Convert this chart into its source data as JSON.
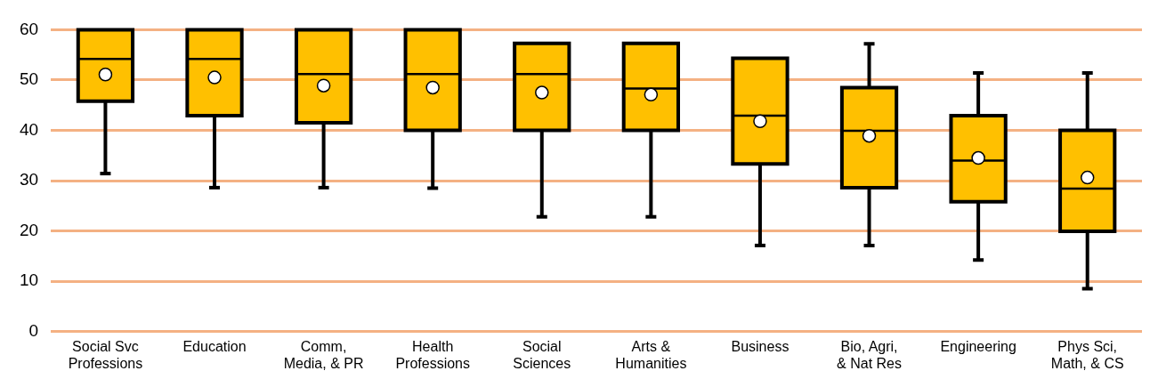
{
  "chart_data": {
    "type": "box",
    "categories": [
      "Social Svc Professions",
      "Education",
      "Comm, Media, & PR",
      "Health Professions",
      "Social Sciences",
      "Arts & Humanities",
      "Business",
      "Bio, Agri, & Nat Res",
      "Engineering",
      "Phys Sci, Math, & CS"
    ],
    "color": "#ffc000",
    "boxes": [
      {
        "low": 31.4,
        "q1": 45.8,
        "median": 54.2,
        "q3": 60,
        "high": 60,
        "mean": 51.1
      },
      {
        "low": 28.6,
        "q1": 42.9,
        "median": 54.2,
        "q3": 60,
        "high": 60,
        "mean": 50.5
      },
      {
        "low": 28.6,
        "q1": 41.5,
        "median": 51.2,
        "q3": 60,
        "high": 60,
        "mean": 48.9
      },
      {
        "low": 28.5,
        "q1": 40,
        "median": 51.2,
        "q3": 60,
        "high": 60,
        "mean": 48.5
      },
      {
        "low": 22.8,
        "q1": 40,
        "median": 51.2,
        "q3": 57.3,
        "high": 57.3,
        "mean": 47.5
      },
      {
        "low": 22.8,
        "q1": 40,
        "median": 48.3,
        "q3": 57.3,
        "high": 57.3,
        "mean": 47.1
      },
      {
        "low": 17.1,
        "q1": 33.3,
        "median": 42.9,
        "q3": 54.3,
        "high": 54.3,
        "mean": 41.8
      },
      {
        "low": 17.1,
        "q1": 28.6,
        "median": 39.9,
        "q3": 48.5,
        "high": 57.2,
        "mean": 38.9
      },
      {
        "low": 14.2,
        "q1": 25.8,
        "median": 34.0,
        "q3": 42.9,
        "high": 51.4,
        "mean": 34.5
      },
      {
        "low": 8.5,
        "q1": 19.9,
        "median": 28.4,
        "q3": 40,
        "high": 51.4,
        "mean": 30.6
      }
    ],
    "ylim": [
      0,
      60
    ],
    "yticks": [
      0,
      10,
      20,
      30,
      40,
      50,
      60
    ],
    "grid": "y",
    "marker": "circle",
    "legend": false
  }
}
